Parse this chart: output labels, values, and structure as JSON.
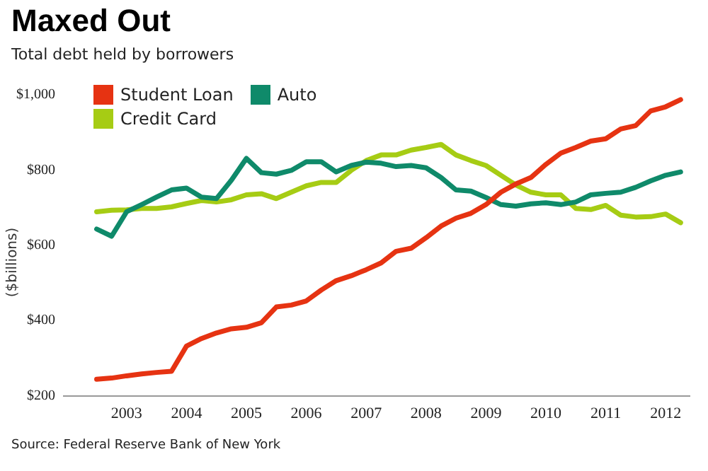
{
  "chart_data": {
    "type": "line",
    "title": "Maxed Out",
    "subtitle": "Total debt held by borrowers",
    "ylabel": "($billions)",
    "annotations": [
      "Source: Federal Reserve Bank of New York"
    ],
    "x": [
      2003,
      2003.25,
      2003.5,
      2003.75,
      2004,
      2004.25,
      2004.5,
      2004.75,
      2005,
      2005.25,
      2005.5,
      2005.75,
      2006,
      2006.25,
      2006.5,
      2006.75,
      2007,
      2007.25,
      2007.5,
      2007.75,
      2008,
      2008.25,
      2008.5,
      2008.75,
      2009,
      2009.25,
      2009.5,
      2009.75,
      2010,
      2010.25,
      2010.5,
      2010.75,
      2011,
      2011.25,
      2011.5,
      2011.75,
      2012,
      2012.25,
      2012.5,
      2012.75
    ],
    "series": [
      {
        "name": "Student Loan",
        "color": "#e63312",
        "values": [
          244,
          247,
          253,
          258,
          262,
          265,
          332,
          352,
          367,
          378,
          382,
          394,
          436,
          441,
          452,
          481,
          506,
          519,
          535,
          553,
          584,
          592,
          620,
          651,
          672,
          685,
          708,
          741,
          763,
          780,
          815,
          845,
          860,
          877,
          883,
          909,
          918,
          957,
          968,
          987
        ]
      },
      {
        "name": "Auto",
        "color": "#0f8a6a",
        "values": [
          643,
          624,
          689,
          708,
          728,
          747,
          752,
          728,
          724,
          773,
          831,
          793,
          789,
          799,
          822,
          822,
          795,
          812,
          821,
          818,
          809,
          812,
          806,
          780,
          747,
          744,
          727,
          708,
          704,
          710,
          713,
          708,
          715,
          734,
          738,
          741,
          754,
          771,
          786,
          795
        ]
      },
      {
        "name": "Credit Card",
        "color": "#a6cc14",
        "values": [
          689,
          693,
          694,
          698,
          698,
          702,
          711,
          719,
          715,
          721,
          734,
          737,
          724,
          741,
          758,
          767,
          767,
          799,
          825,
          840,
          840,
          853,
          860,
          868,
          840,
          825,
          812,
          786,
          760,
          741,
          734,
          734,
          698,
          695,
          706,
          680,
          675,
          676,
          683,
          660
        ]
      }
    ],
    "xlim": [
      2002.45,
      2012.9
    ],
    "xticks": [
      {
        "value": 2003.5,
        "label": "2003"
      },
      {
        "value": 2004.5,
        "label": "2004"
      },
      {
        "value": 2005.5,
        "label": "2005"
      },
      {
        "value": 2006.5,
        "label": "2006"
      },
      {
        "value": 2007.5,
        "label": "2007"
      },
      {
        "value": 2008.5,
        "label": "2008"
      },
      {
        "value": 2009.5,
        "label": "2009"
      },
      {
        "value": 2010.5,
        "label": "2010"
      },
      {
        "value": 2011.5,
        "label": "2011"
      },
      {
        "value": 2012.5,
        "label": "2012"
      }
    ],
    "ylim": [
      200,
      1000
    ],
    "yticks": [
      {
        "value": 200,
        "label": "$200"
      },
      {
        "value": 400,
        "label": "$400"
      },
      {
        "value": 600,
        "label": "$600"
      },
      {
        "value": 800,
        "label": "$800"
      },
      {
        "value": 1000,
        "label": "$1,000"
      }
    ],
    "grid": false,
    "legend": "top left",
    "marker": "none",
    "line_style": "solid"
  }
}
